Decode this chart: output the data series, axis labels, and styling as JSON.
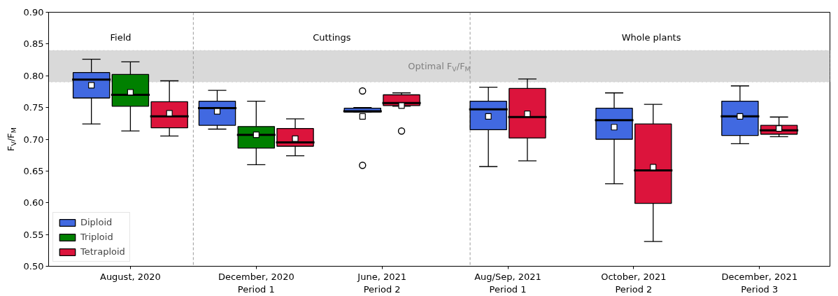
{
  "chart_data": {
    "type": "box",
    "ylabel": "F$_{V}$/F$_{M}$",
    "categories": [
      "August, 2020",
      "December, 2020\nPeriod 1",
      "June, 2021\nPeriod 2",
      "Aug/Sep, 2021\nPeriod 1",
      "October, 2021\nPeriod 2",
      "December, 2021\nPeriod 3"
    ],
    "series": [
      {
        "name": "Diploid",
        "color": "#4169e1",
        "boxes": [
          {
            "low": 0.724,
            "q1": 0.765,
            "median": 0.794,
            "q3": 0.805,
            "high": 0.826,
            "mean": 0.785
          },
          {
            "low": 0.716,
            "q1": 0.722,
            "median": 0.749,
            "q3": 0.76,
            "high": 0.777,
            "mean": 0.744
          },
          {
            "low": 0.743,
            "q1": 0.743,
            "median": 0.744,
            "q3": 0.749,
            "high": 0.75,
            "mean": 0.736,
            "outliers": [
              0.776,
              0.659
            ]
          },
          {
            "low": 0.657,
            "q1": 0.715,
            "median": 0.747,
            "q3": 0.76,
            "high": 0.782,
            "mean": 0.736
          },
          {
            "low": 0.63,
            "q1": 0.7,
            "median": 0.73,
            "q3": 0.749,
            "high": 0.773,
            "mean": 0.719
          },
          {
            "low": 0.693,
            "q1": 0.706,
            "median": 0.736,
            "q3": 0.76,
            "high": 0.784,
            "mean": 0.736
          }
        ]
      },
      {
        "name": "Triploid",
        "color": "#008000",
        "boxes": [
          {
            "low": 0.713,
            "q1": 0.752,
            "median": 0.77,
            "q3": 0.802,
            "high": 0.822,
            "mean": 0.774
          },
          {
            "low": 0.66,
            "q1": 0.686,
            "median": 0.707,
            "q3": 0.72,
            "high": 0.76,
            "mean": 0.707
          },
          null,
          null,
          null,
          null
        ]
      },
      {
        "name": "Tetraploid",
        "color": "#dc143c",
        "boxes": [
          {
            "low": 0.705,
            "q1": 0.718,
            "median": 0.736,
            "q3": 0.759,
            "high": 0.792,
            "mean": 0.741
          },
          {
            "low": 0.674,
            "q1": 0.689,
            "median": 0.695,
            "q3": 0.717,
            "high": 0.732,
            "mean": 0.701
          },
          {
            "low": 0.752,
            "q1": 0.753,
            "median": 0.757,
            "q3": 0.77,
            "high": 0.773,
            "mean": 0.753,
            "outliers": [
              0.713
            ]
          },
          {
            "low": 0.666,
            "q1": 0.702,
            "median": 0.735,
            "q3": 0.78,
            "high": 0.795,
            "mean": 0.74
          },
          {
            "low": 0.539,
            "q1": 0.599,
            "median": 0.651,
            "q3": 0.724,
            "high": 0.755,
            "mean": 0.656
          },
          {
            "low": 0.704,
            "q1": 0.708,
            "median": 0.714,
            "q3": 0.722,
            "high": 0.735,
            "mean": 0.717
          }
        ]
      }
    ],
    "ylim": [
      0.5,
      0.9
    ],
    "yticks": [
      {
        "value": 0.5,
        "label": "0.50"
      },
      0.55,
      {
        "value": 0.6,
        "label": "0.60"
      },
      0.65,
      {
        "value": 0.7,
        "label": "0.70"
      },
      0.75,
      {
        "value": 0.8,
        "label": "0.80"
      },
      0.85,
      {
        "value": 0.9,
        "label": "0.90"
      }
    ],
    "bands": [
      {
        "axis": "y",
        "from": 0.79,
        "to": 0.84,
        "label": "Optimal F$_{V}$/F$_{M}$",
        "color": "#d9d9d9"
      }
    ],
    "annotations": [
      "Field",
      "Cuttings",
      "Whole plants"
    ],
    "legend": "bottom left",
    "grid": false
  }
}
